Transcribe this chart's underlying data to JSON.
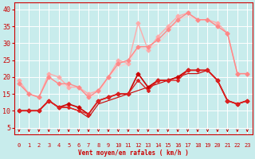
{
  "xlabel": "Vent moyen/en rafales ( km/h )",
  "bg_color": "#c8ecec",
  "grid_color": "#ffffff",
  "text_color": "#cc0000",
  "xlim": [
    -0.5,
    23.5
  ],
  "ylim": [
    3,
    42
  ],
  "yticks": [
    5,
    10,
    15,
    20,
    25,
    30,
    35,
    40
  ],
  "xticks": [
    0,
    1,
    2,
    3,
    4,
    5,
    6,
    7,
    8,
    9,
    10,
    11,
    12,
    13,
    14,
    15,
    16,
    17,
    18,
    19,
    20,
    21,
    22,
    23
  ],
  "lines": [
    {
      "x": [
        0,
        1,
        2,
        3,
        4,
        5,
        6,
        7,
        8,
        9,
        10,
        11,
        12,
        13,
        14,
        15,
        16,
        17,
        18,
        19,
        20,
        21,
        22,
        23
      ],
      "y": [
        19,
        15,
        14,
        21,
        20,
        17,
        17,
        15,
        16,
        20,
        25,
        24,
        36,
        28,
        32,
        35,
        38,
        39,
        37,
        37,
        36,
        33,
        21,
        21
      ],
      "color": "#ffaaaa",
      "lw": 1.0,
      "marker": "D",
      "ms": 2.5,
      "zorder": 2
    },
    {
      "x": [
        0,
        1,
        2,
        3,
        4,
        5,
        6,
        7,
        8,
        9,
        10,
        11,
        12,
        13,
        14,
        15,
        16,
        17,
        18,
        19,
        20,
        21,
        22,
        23
      ],
      "y": [
        18,
        15,
        14,
        20,
        18,
        18,
        17,
        14,
        16,
        20,
        24,
        25,
        29,
        29,
        31,
        34,
        37,
        39,
        37,
        37,
        35,
        33,
        21,
        21
      ],
      "color": "#ff8888",
      "lw": 1.0,
      "marker": "D",
      "ms": 2.5,
      "zorder": 2
    },
    {
      "x": [
        0,
        1,
        2,
        3,
        4,
        5,
        6,
        7,
        8,
        9,
        10,
        11,
        12,
        13,
        14,
        15,
        16,
        17,
        18,
        19,
        20,
        21,
        22,
        23
      ],
      "y": [
        18,
        15,
        14,
        20,
        18,
        17,
        17,
        14,
        15,
        20,
        23,
        24,
        29,
        28,
        30,
        33,
        37,
        38,
        37,
        37,
        35,
        33,
        21,
        21
      ],
      "color": "#ffcccc",
      "lw": 0.8,
      "marker": null,
      "ms": 0,
      "zorder": 1
    },
    {
      "x": [
        0,
        1,
        2,
        3,
        4,
        5,
        6,
        7,
        8,
        9,
        10,
        11,
        12,
        13,
        14,
        15,
        16,
        17,
        18,
        19,
        20,
        21,
        22,
        23
      ],
      "y": [
        10,
        10,
        10,
        13,
        11,
        12,
        11,
        9,
        13,
        14,
        15,
        15,
        21,
        17,
        19,
        19,
        20,
        22,
        22,
        22,
        19,
        13,
        12,
        13
      ],
      "color": "#cc0000",
      "lw": 1.2,
      "marker": "D",
      "ms": 2.5,
      "zorder": 3
    },
    {
      "x": [
        0,
        1,
        2,
        3,
        4,
        5,
        6,
        7,
        8,
        9,
        10,
        11,
        12,
        13,
        14,
        15,
        16,
        17,
        18,
        19,
        20,
        21,
        22,
        23
      ],
      "y": [
        10,
        10,
        10,
        13,
        11,
        11,
        10,
        9,
        13,
        14,
        15,
        15,
        19,
        16,
        19,
        19,
        19,
        22,
        22,
        22,
        19,
        13,
        12,
        13
      ],
      "color": "#dd2222",
      "lw": 1.0,
      "marker": "D",
      "ms": 2.0,
      "zorder": 3
    },
    {
      "x": [
        0,
        1,
        2,
        3,
        4,
        5,
        6,
        7,
        8,
        9,
        10,
        11,
        12,
        13,
        14,
        15,
        16,
        17,
        18,
        19,
        20,
        21,
        22,
        23
      ],
      "y": [
        10,
        10,
        10,
        13,
        11,
        11,
        10,
        8,
        12,
        13,
        14,
        15,
        16,
        17,
        18,
        19,
        20,
        21,
        21,
        22,
        19,
        13,
        12,
        13
      ],
      "color": "#cc0000",
      "lw": 0.8,
      "marker": null,
      "ms": 0,
      "zorder": 2
    }
  ]
}
